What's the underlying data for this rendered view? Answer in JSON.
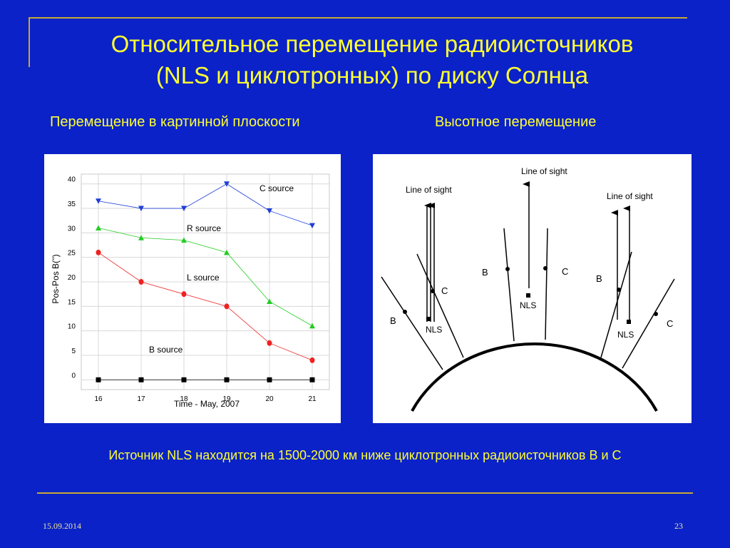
{
  "slide": {
    "title_line1": "Относительное перемещение радиоисточников",
    "title_line2": "(NLS и циклотронных)  по диску Солнца",
    "subtitle_left": "Перемещение в картинной плоскости",
    "subtitle_right": "Высотное перемещение",
    "caption": "Источник  NLS находится на 1500-2000 км ниже циклотронных радиоисточников B  и С",
    "date": "15.09.2014",
    "page_number": "23"
  },
  "chart_data": {
    "type": "scatter",
    "xlabel": "Time - May, 2007",
    "ylabel": "Pos-Pos B('')",
    "x_ticks": [
      "16",
      "17",
      "18",
      "19",
      "20",
      "21"
    ],
    "y_ticks": [
      "0",
      "5",
      "10",
      "15",
      "20",
      "25",
      "30",
      "35",
      "40"
    ],
    "xlim": [
      15.6,
      21.4
    ],
    "ylim": [
      -2,
      42
    ],
    "x": [
      16,
      17,
      18,
      19,
      20,
      21
    ],
    "series": [
      {
        "name": "C source",
        "values": [
          36.5,
          35,
          35,
          40,
          34.5,
          31.5
        ],
        "color": "#1f3fd6",
        "marker": "triangle-down"
      },
      {
        "name": "R source",
        "values": [
          31,
          29,
          28.5,
          26,
          16,
          11
        ],
        "color": "#22cc22",
        "marker": "triangle-up"
      },
      {
        "name": "L source",
        "values": [
          26,
          20,
          17.5,
          15,
          7.5,
          4
        ],
        "color": "#ee2222",
        "marker": "circle"
      },
      {
        "name": "B source",
        "values": [
          0,
          0,
          0,
          0,
          0,
          0
        ],
        "color": "#000000",
        "marker": "square"
      }
    ]
  },
  "diagram": {
    "line_of_sight_label": "Line of sight",
    "label_b": "B",
    "label_c": "C",
    "label_nls": "NLS"
  }
}
